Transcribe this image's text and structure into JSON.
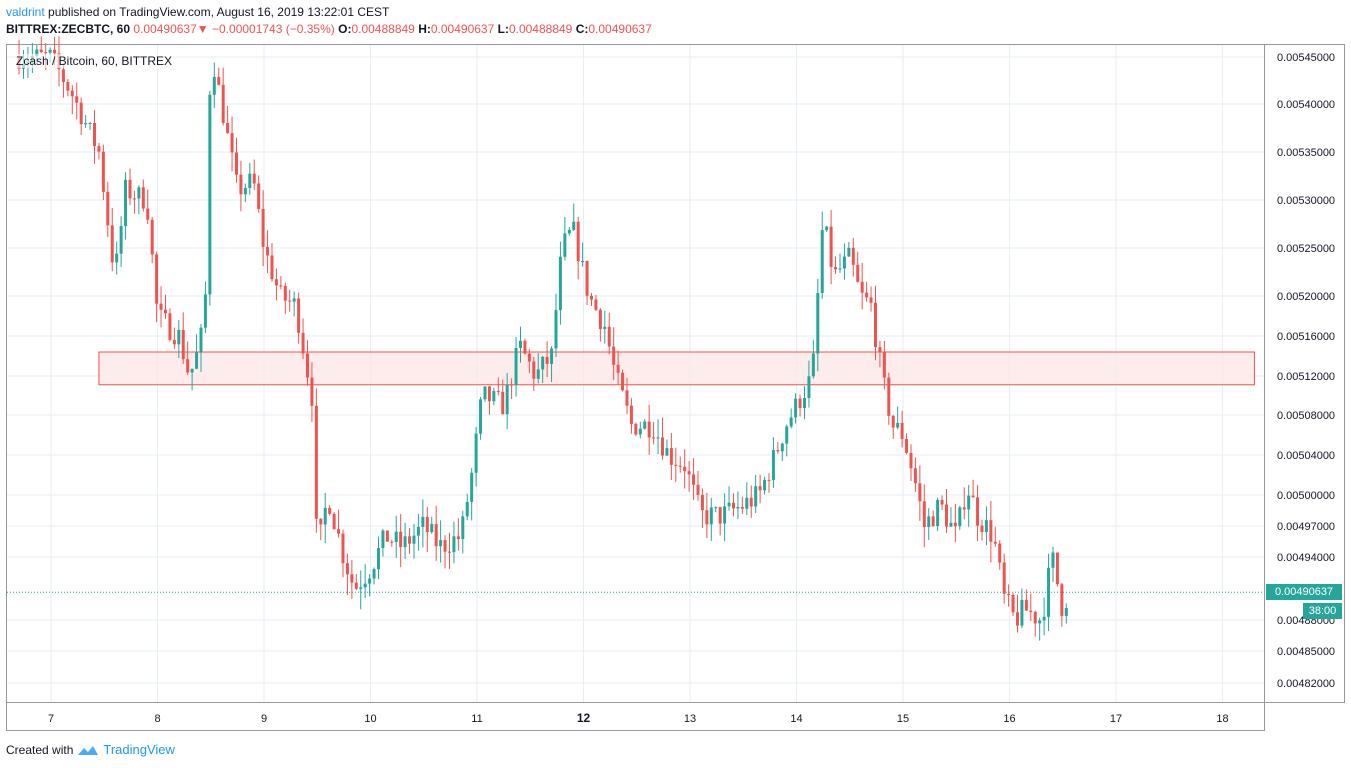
{
  "header": {
    "author": "valdrint",
    "published_text": " published on TradingView.com, August 16, 2019 13:22:01 CEST",
    "symbol": "BITTREX:ZECBTC, 60",
    "last": "0.00490637",
    "change_arrow": "▼",
    "change": "−0.00001743 (−0.35%)",
    "o_label": "O:",
    "o_value": "0.00488849",
    "h_label": "H:",
    "h_value": "0.00490637",
    "l_label": "L:",
    "l_value": "0.00488849",
    "c_label": "C:",
    "c_value": "0.00490637"
  },
  "overlay_title": "Zcash / Bitcoin, 60, BITTREX",
  "footer": {
    "created_with": "Created with",
    "brand": "TradingView"
  },
  "price_tag": "0.00490637",
  "countdown": "38:00",
  "colors": {
    "up": "#26a69a",
    "down": "#ef5350",
    "zone_fill": "#fce4e4",
    "zone_stroke": "#ef5350",
    "grid": "#e6eef6"
  },
  "chart_data": {
    "type": "candlestick",
    "x_ticks": [
      "7",
      "8",
      "9",
      "10",
      "11",
      "12",
      "13",
      "14",
      "15",
      "16",
      "17",
      "18"
    ],
    "x_ticks_bold": [
      "12"
    ],
    "y_ticks": [
      "0.00545000",
      "0.00540000",
      "0.00535000",
      "0.00530000",
      "0.00525000",
      "0.00520000",
      "0.00516000",
      "0.00512000",
      "0.00508000",
      "0.00504000",
      "0.00500000",
      "0.00497000",
      "0.00494000",
      "0.00488000",
      "0.00485000",
      "0.00482000"
    ],
    "y_tick_values": [
      0.00545,
      0.0054,
      0.00535,
      0.0053,
      0.00525,
      0.0052,
      0.00516,
      0.00512,
      0.00508,
      0.00504,
      0.005,
      0.00497,
      0.00494,
      0.00488,
      0.00485,
      0.00482
    ],
    "ylim": [
      0.0048,
      0.00546
    ],
    "xlim": [
      6.6,
      18.4
    ],
    "current_price": 0.00490637,
    "resistance_zone": {
      "x_start": 7.45,
      "x_end": 18.3,
      "low": 0.005111,
      "high": 0.005144
    },
    "close_path": [
      [
        6.7,
        0.00545
      ],
      [
        7.0,
        0.00545
      ],
      [
        7.2,
        0.00541
      ],
      [
        7.45,
        0.00535
      ],
      [
        7.6,
        0.00522
      ],
      [
        7.7,
        0.00531
      ],
      [
        7.9,
        0.0053
      ],
      [
        8.0,
        0.00518
      ],
      [
        8.1,
        0.00517
      ],
      [
        8.2,
        0.00516
      ],
      [
        8.3,
        0.00512
      ],
      [
        8.4,
        0.00515
      ],
      [
        8.45,
        0.0052
      ],
      [
        8.5,
        0.00546
      ],
      [
        8.6,
        0.0054
      ],
      [
        8.75,
        0.00531
      ],
      [
        8.9,
        0.00532
      ],
      [
        9.0,
        0.00525
      ],
      [
        9.15,
        0.0052
      ],
      [
        9.3,
        0.00519
      ],
      [
        9.45,
        0.0051
      ],
      [
        9.5,
        0.00494
      ],
      [
        9.6,
        0.005
      ],
      [
        9.75,
        0.00494
      ],
      [
        9.85,
        0.00491
      ],
      [
        10.0,
        0.00493
      ],
      [
        10.15,
        0.00496
      ],
      [
        10.3,
        0.00495
      ],
      [
        10.5,
        0.00497
      ],
      [
        10.65,
        0.00495
      ],
      [
        10.85,
        0.00496
      ],
      [
        10.95,
        0.00502
      ],
      [
        11.05,
        0.0051
      ],
      [
        11.25,
        0.00509
      ],
      [
        11.4,
        0.00515
      ],
      [
        11.55,
        0.00512
      ],
      [
        11.7,
        0.00514
      ],
      [
        11.8,
        0.00525
      ],
      [
        11.9,
        0.00527
      ],
      [
        12.05,
        0.0052
      ],
      [
        12.2,
        0.00517
      ],
      [
        12.3,
        0.00512
      ],
      [
        12.45,
        0.00507
      ],
      [
        12.65,
        0.00507
      ],
      [
        12.8,
        0.00504
      ],
      [
        12.95,
        0.00503
      ],
      [
        13.1,
        0.00498
      ],
      [
        13.3,
        0.00498
      ],
      [
        13.5,
        0.00499
      ],
      [
        13.65,
        0.005
      ],
      [
        13.8,
        0.00504
      ],
      [
        13.9,
        0.00507
      ],
      [
        14.05,
        0.0051
      ],
      [
        14.15,
        0.00512
      ],
      [
        14.25,
        0.00528
      ],
      [
        14.35,
        0.00522
      ],
      [
        14.5,
        0.00524
      ],
      [
        14.6,
        0.0052
      ],
      [
        14.7,
        0.00519
      ],
      [
        14.8,
        0.00512
      ],
      [
        14.9,
        0.00507
      ],
      [
        15.0,
        0.00506
      ],
      [
        15.1,
        0.00502
      ],
      [
        15.2,
        0.00497
      ],
      [
        15.35,
        0.00499
      ],
      [
        15.5,
        0.00496
      ],
      [
        15.6,
        0.00501
      ],
      [
        15.7,
        0.00498
      ],
      [
        15.85,
        0.00496
      ],
      [
        15.95,
        0.0049
      ],
      [
        16.05,
        0.00488
      ],
      [
        16.15,
        0.00489
      ],
      [
        16.3,
        0.00488
      ],
      [
        16.4,
        0.00494
      ],
      [
        16.5,
        0.00489
      ],
      [
        16.55,
        0.00490637
      ]
    ]
  }
}
